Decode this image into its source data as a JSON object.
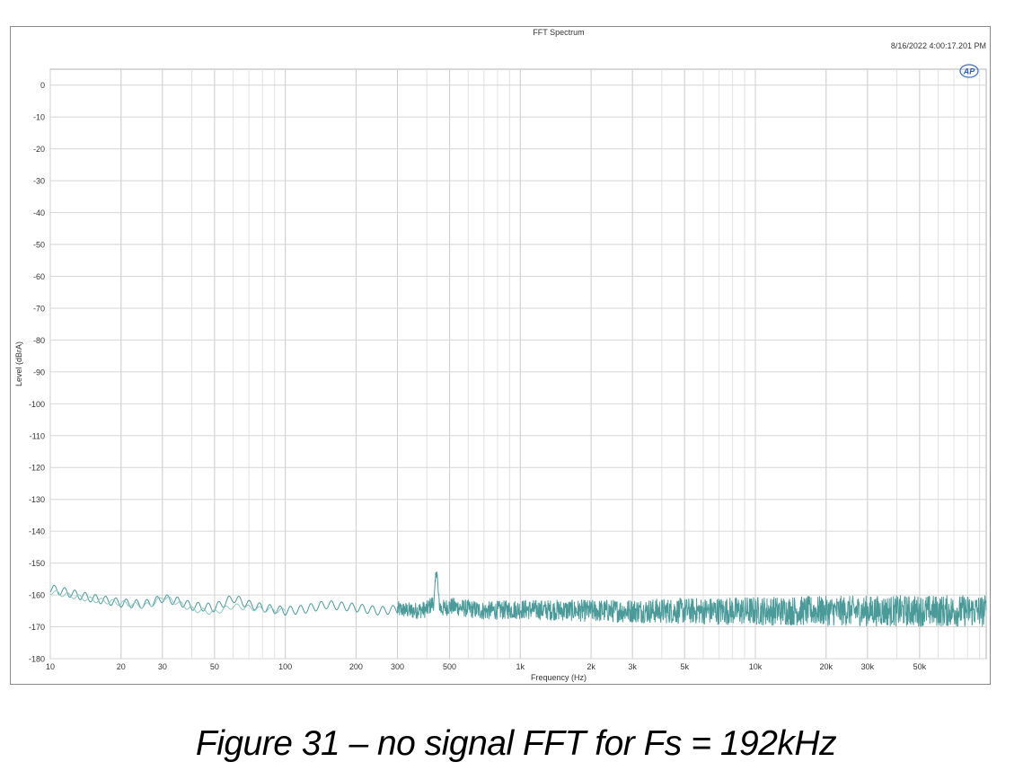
{
  "chart_data": {
    "type": "line",
    "title": "FFT Spectrum",
    "timestamp": "8/16/2022 4:00:17.201 PM",
    "logo_text": "AP",
    "xlabel": "Frequency (Hz)",
    "ylabel": "Level (dBrA)",
    "x_scale": "log",
    "xlim": [
      10,
      96000
    ],
    "ylim": [
      -180,
      5
    ],
    "grid": true,
    "legend": "none",
    "x_ticks": [
      {
        "value": 10,
        "label": "10"
      },
      {
        "value": 20,
        "label": "20"
      },
      {
        "value": 30,
        "label": "30"
      },
      {
        "value": 50,
        "label": "50"
      },
      {
        "value": 100,
        "label": "100"
      },
      {
        "value": 200,
        "label": "200"
      },
      {
        "value": 300,
        "label": "300"
      },
      {
        "value": 500,
        "label": "500"
      },
      {
        "value": 1000,
        "label": "1k"
      },
      {
        "value": 2000,
        "label": "2k"
      },
      {
        "value": 3000,
        "label": "3k"
      },
      {
        "value": 5000,
        "label": "5k"
      },
      {
        "value": 10000,
        "label": "10k"
      },
      {
        "value": 20000,
        "label": "20k"
      },
      {
        "value": 30000,
        "label": "30k"
      },
      {
        "value": 50000,
        "label": "50k"
      }
    ],
    "y_ticks": [
      0,
      -10,
      -20,
      -30,
      -40,
      -50,
      -60,
      -70,
      -80,
      -90,
      -100,
      -110,
      -120,
      -130,
      -140,
      -150,
      -160,
      -170,
      -180
    ],
    "series": [
      {
        "color": "#4a9a9a",
        "x": [
          10,
          15,
          20,
          25,
          28,
          30,
          35,
          40,
          50,
          60,
          70,
          80,
          100,
          120,
          150,
          200,
          250,
          300,
          350,
          400,
          430,
          440,
          450,
          460,
          500,
          700,
          1000,
          2000,
          5000,
          10000,
          20000,
          50000,
          96000
        ],
        "y": [
          -158,
          -161,
          -162.5,
          -163,
          -162,
          -161,
          -162,
          -163.5,
          -164,
          -161,
          -163,
          -164,
          -165,
          -164.5,
          -163,
          -164,
          -165,
          -164.5,
          -165,
          -164.5,
          -162,
          -151,
          -162,
          -164.5,
          -163.5,
          -165,
          -164.5,
          -165,
          -165,
          -165,
          -165,
          -165,
          -165
        ]
      },
      {
        "color": "#8fc6c6",
        "x": [
          10,
          15,
          20,
          25,
          28,
          30,
          35,
          40,
          50,
          60,
          70,
          80,
          100
        ],
        "y": [
          -159,
          -161.5,
          -162.5,
          -163.5,
          -162.5,
          -160.5,
          -162.5,
          -164.5,
          -165.5,
          -163.5,
          -164,
          -164.5,
          -165
        ]
      }
    ],
    "noise_floor_band": {
      "note_x": [
        300,
        1000,
        10000,
        96000
      ],
      "half_width_db": [
        2.5,
        3,
        4.5,
        5
      ]
    }
  },
  "caption": "Figure 31 – no signal FFT for Fs = 192kHz"
}
